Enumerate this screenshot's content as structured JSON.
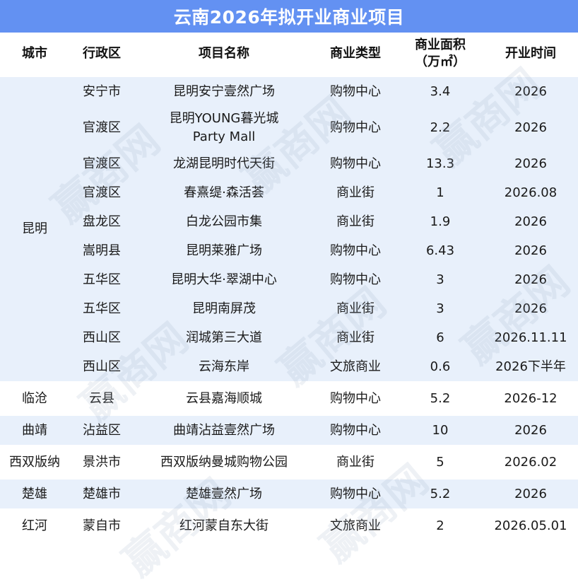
{
  "title": "云南2026年拟开业商业项目",
  "headers": {
    "city": "城市",
    "district": "行政区",
    "project": "项目名称",
    "type": "商业类型",
    "area_line1": "商业面积",
    "area_line2": "（万㎡）",
    "open": "开业时间"
  },
  "groups": [
    {
      "city": "昆明",
      "rows": [
        {
          "district": "安宁市",
          "project": [
            "昆明安宁壹然广场"
          ],
          "type": "购物中心",
          "area": "3.4",
          "open": "2026"
        },
        {
          "district": "官渡区",
          "project": [
            "昆明YOUNG暮光城",
            "Party Mall"
          ],
          "type": "购物中心",
          "area": "2.2",
          "open": "2026"
        },
        {
          "district": "官渡区",
          "project": [
            "龙湖昆明时代天街"
          ],
          "type": "购物中心",
          "area": "13.3",
          "open": "2026"
        },
        {
          "district": "官渡区",
          "project": [
            "春熹缇·森活荟"
          ],
          "type": "商业街",
          "area": "1",
          "open": "2026.08"
        },
        {
          "district": "盘龙区",
          "project": [
            "白龙公园市集"
          ],
          "type": "商业街",
          "area": "1.9",
          "open": "2026"
        },
        {
          "district": "嵩明县",
          "project": [
            "昆明莱雅广场"
          ],
          "type": "购物中心",
          "area": "6.43",
          "open": "2026"
        },
        {
          "district": "五华区",
          "project": [
            "昆明大华·翠湖中心"
          ],
          "type": "购物中心",
          "area": "3",
          "open": "2026"
        },
        {
          "district": "五华区",
          "project": [
            "昆明南屏茂"
          ],
          "type": "商业街",
          "area": "3",
          "open": "2026"
        },
        {
          "district": "西山区",
          "project": [
            "润城第三大道"
          ],
          "type": "商业街",
          "area": "6",
          "open": "2026.11.11"
        },
        {
          "district": "西山区",
          "project": [
            "云海东岸"
          ],
          "type": "文旅商业",
          "area": "0.6",
          "open": "2026下半年"
        }
      ]
    },
    {
      "city": "临沧",
      "rows": [
        {
          "district": "云县",
          "project": [
            "云县嘉海顺城"
          ],
          "type": "购物中心",
          "area": "5.2",
          "open": "2026-12"
        }
      ]
    },
    {
      "city": "曲靖",
      "rows": [
        {
          "district": "沾益区",
          "project": [
            "曲靖沾益壹然广场"
          ],
          "type": "购物中心",
          "area": "10",
          "open": "2026"
        }
      ]
    },
    {
      "city": "西双版纳",
      "rows": [
        {
          "district": "景洪市",
          "project": [
            "西双版纳曼城购物公园"
          ],
          "type": "商业街",
          "area": "5",
          "open": "2026.02"
        }
      ]
    },
    {
      "city": "楚雄",
      "rows": [
        {
          "district": "楚雄市",
          "project": [
            "楚雄壹然广场"
          ],
          "type": "购物中心",
          "area": "5.2",
          "open": "2026"
        }
      ]
    },
    {
      "city": "红河",
      "rows": [
        {
          "district": "蒙自市",
          "project": [
            "红河蒙自东大街"
          ],
          "type": "文旅商业",
          "area": "2",
          "open": "2026.05.01"
        }
      ]
    }
  ],
  "watermark": "赢商网"
}
